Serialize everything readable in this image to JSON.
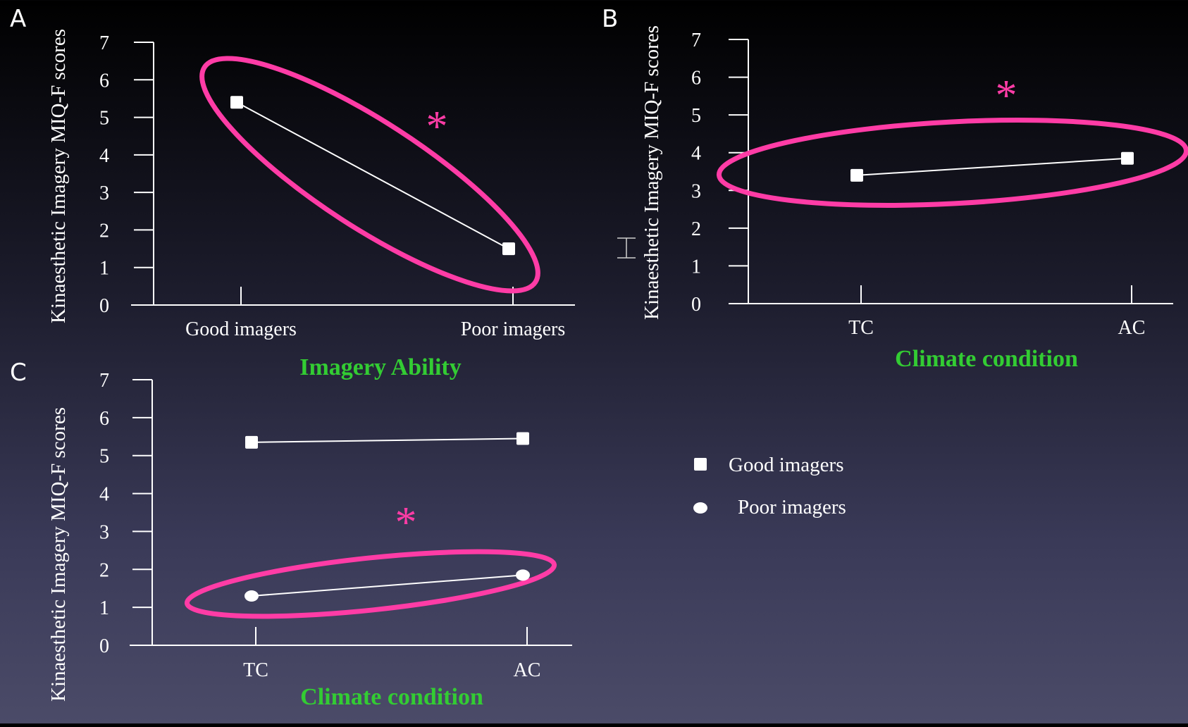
{
  "colors": {
    "axis": "#ffffff",
    "text": "#ffffff",
    "xlabel": "#33cc33",
    "highlight": "#ff3ca6",
    "line": "#ffffff"
  },
  "legend": {
    "items": [
      {
        "label": "Good imagers",
        "marker": "square"
      },
      {
        "label": "Poor imagers",
        "marker": "circle"
      }
    ]
  },
  "chart_data": [
    {
      "panel": "A",
      "type": "line",
      "ylabel": "Kinaesthetic Imagery MIQ-F  scores",
      "xlabel": "Imagery Ability",
      "categories": [
        "Good imagers",
        "Poor imagers"
      ],
      "yticks": [
        "0",
        "1",
        "2",
        "3",
        "4",
        "5",
        "6",
        "7"
      ],
      "ylim": [
        0,
        7
      ],
      "series": [
        {
          "marker": "square",
          "values": [
            5.4,
            1.5
          ]
        }
      ],
      "annotation": "*",
      "highlight": "ellipse around series"
    },
    {
      "panel": "B",
      "type": "line",
      "ylabel": "Kinaesthetic Imagery MIQ-F  scores",
      "xlabel": "Climate condition",
      "categories": [
        "TC",
        "AC"
      ],
      "yticks": [
        "0",
        "1",
        "2",
        "3",
        "4",
        "5",
        "6",
        "7"
      ],
      "ylim": [
        0,
        7
      ],
      "series": [
        {
          "marker": "square",
          "values": [
            3.4,
            3.85
          ]
        }
      ],
      "annotation": "*",
      "highlight": "ellipse around series"
    },
    {
      "panel": "C",
      "type": "line",
      "ylabel": "Kinaesthetic  Imagery MIQ-F  scores",
      "xlabel": "Climate condition",
      "categories": [
        "TC",
        "AC"
      ],
      "yticks": [
        "0",
        "1",
        "2",
        "3",
        "4",
        "5",
        "6",
        "7"
      ],
      "ylim": [
        0,
        7
      ],
      "series": [
        {
          "name": "Good imagers",
          "marker": "square",
          "values": [
            5.35,
            5.45
          ]
        },
        {
          "name": "Poor imagers",
          "marker": "circle",
          "values": [
            1.3,
            1.85
          ]
        }
      ],
      "annotation": "*",
      "highlight": "ellipse around Poor imagers series"
    }
  ]
}
